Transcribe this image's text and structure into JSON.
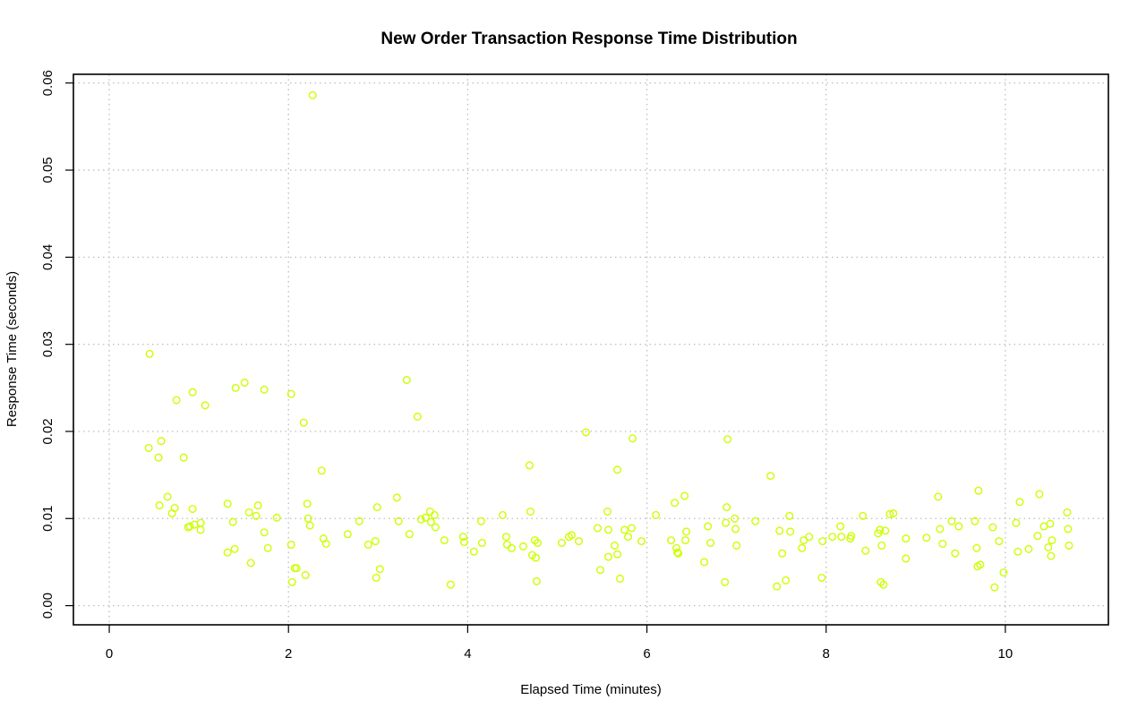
{
  "chart_data": {
    "type": "scatter",
    "title": "New Order Transaction Response Time Distribution",
    "xlabel": "Elapsed Time (minutes)",
    "ylabel": "Response Time (seconds)",
    "xlim": [
      -0.4,
      11.15
    ],
    "ylim": [
      -0.0022,
      0.061
    ],
    "xticks": [
      0,
      2,
      4,
      6,
      8,
      10
    ],
    "yticks": [
      0.0,
      0.01,
      0.02,
      0.03,
      0.04,
      0.05,
      0.06
    ],
    "xtick_labels": [
      "0",
      "2",
      "4",
      "6",
      "8",
      "10"
    ],
    "ytick_labels": [
      "0.00",
      "0.01",
      "0.02",
      "0.03",
      "0.04",
      "0.05",
      "0.06"
    ],
    "grid": true,
    "legend": "none",
    "point_color": "#ccff00",
    "points": [
      [
        0.45,
        0.0289
      ],
      [
        0.44,
        0.0181
      ],
      [
        0.55,
        0.017
      ],
      [
        0.58,
        0.0189
      ],
      [
        0.56,
        0.0115
      ],
      [
        0.65,
        0.0125
      ],
      [
        0.7,
        0.0106
      ],
      [
        0.73,
        0.0112
      ],
      [
        0.75,
        0.0236
      ],
      [
        0.83,
        0.017
      ],
      [
        0.88,
        0.009
      ],
      [
        0.9,
        0.0091
      ],
      [
        0.93,
        0.0245
      ],
      [
        0.93,
        0.0111
      ],
      [
        0.95,
        0.0093
      ],
      [
        1.02,
        0.0095
      ],
      [
        1.02,
        0.0087
      ],
      [
        1.07,
        0.023
      ],
      [
        1.32,
        0.0117
      ],
      [
        1.32,
        0.0061
      ],
      [
        1.38,
        0.0096
      ],
      [
        1.4,
        0.0065
      ],
      [
        1.41,
        0.025
      ],
      [
        1.51,
        0.0256
      ],
      [
        1.56,
        0.0107
      ],
      [
        1.58,
        0.0049
      ],
      [
        1.64,
        0.0103
      ],
      [
        1.66,
        0.0115
      ],
      [
        1.73,
        0.0248
      ],
      [
        1.73,
        0.0084
      ],
      [
        1.77,
        0.0066
      ],
      [
        1.87,
        0.0101
      ],
      [
        2.03,
        0.0243
      ],
      [
        2.03,
        0.007
      ],
      [
        2.04,
        0.0027
      ],
      [
        2.07,
        0.0043
      ],
      [
        2.09,
        0.0043
      ],
      [
        2.17,
        0.021
      ],
      [
        2.19,
        0.0035
      ],
      [
        2.21,
        0.0117
      ],
      [
        2.22,
        0.01
      ],
      [
        2.24,
        0.0092
      ],
      [
        2.27,
        0.0586
      ],
      [
        2.37,
        0.0155
      ],
      [
        2.39,
        0.0077
      ],
      [
        2.42,
        0.0071
      ],
      [
        2.66,
        0.0082
      ],
      [
        2.79,
        0.0097
      ],
      [
        2.89,
        0.007
      ],
      [
        2.97,
        0.0074
      ],
      [
        2.98,
        0.0032
      ],
      [
        2.99,
        0.0113
      ],
      [
        3.02,
        0.0042
      ],
      [
        3.21,
        0.0124
      ],
      [
        3.23,
        0.0097
      ],
      [
        3.32,
        0.0259
      ],
      [
        3.35,
        0.0082
      ],
      [
        3.44,
        0.0217
      ],
      [
        3.48,
        0.0099
      ],
      [
        3.53,
        0.0101
      ],
      [
        3.58,
        0.0108
      ],
      [
        3.59,
        0.0096
      ],
      [
        3.63,
        0.0104
      ],
      [
        3.64,
        0.009
      ],
      [
        3.74,
        0.0075
      ],
      [
        3.81,
        0.0024
      ],
      [
        3.95,
        0.0079
      ],
      [
        3.96,
        0.0073
      ],
      [
        4.07,
        0.0062
      ],
      [
        4.15,
        0.0097
      ],
      [
        4.16,
        0.0072
      ],
      [
        4.39,
        0.0104
      ],
      [
        4.43,
        0.0079
      ],
      [
        4.44,
        0.007
      ],
      [
        4.49,
        0.0066
      ],
      [
        4.62,
        0.0068
      ],
      [
        4.69,
        0.0161
      ],
      [
        4.7,
        0.0108
      ],
      [
        4.72,
        0.0058
      ],
      [
        4.75,
        0.0075
      ],
      [
        4.76,
        0.0055
      ],
      [
        4.77,
        0.0028
      ],
      [
        4.78,
        0.0072
      ],
      [
        5.05,
        0.0072
      ],
      [
        5.13,
        0.0079
      ],
      [
        5.16,
        0.0081
      ],
      [
        5.24,
        0.0074
      ],
      [
        5.32,
        0.0199
      ],
      [
        5.45,
        0.0089
      ],
      [
        5.48,
        0.0041
      ],
      [
        5.56,
        0.0108
      ],
      [
        5.57,
        0.0087
      ],
      [
        5.57,
        0.0056
      ],
      [
        5.64,
        0.0069
      ],
      [
        5.67,
        0.0156
      ],
      [
        5.67,
        0.0059
      ],
      [
        5.7,
        0.0031
      ],
      [
        5.75,
        0.0087
      ],
      [
        5.79,
        0.0079
      ],
      [
        5.83,
        0.0089
      ],
      [
        5.84,
        0.0192
      ],
      [
        5.94,
        0.0074
      ],
      [
        6.1,
        0.0104
      ],
      [
        6.27,
        0.0075
      ],
      [
        6.31,
        0.0118
      ],
      [
        6.33,
        0.0066
      ],
      [
        6.34,
        0.0061
      ],
      [
        6.35,
        0.006
      ],
      [
        6.42,
        0.0126
      ],
      [
        6.43,
        0.0075
      ],
      [
        6.44,
        0.0085
      ],
      [
        6.64,
        0.005
      ],
      [
        6.68,
        0.0091
      ],
      [
        6.71,
        0.0072
      ],
      [
        6.87,
        0.0027
      ],
      [
        6.88,
        0.0095
      ],
      [
        6.89,
        0.0113
      ],
      [
        6.9,
        0.0191
      ],
      [
        6.98,
        0.01
      ],
      [
        6.99,
        0.0088
      ],
      [
        7.0,
        0.0069
      ],
      [
        7.21,
        0.0097
      ],
      [
        7.38,
        0.0149
      ],
      [
        7.45,
        0.0022
      ],
      [
        7.48,
        0.0086
      ],
      [
        7.51,
        0.006
      ],
      [
        7.55,
        0.0029
      ],
      [
        7.59,
        0.0103
      ],
      [
        7.6,
        0.0085
      ],
      [
        7.73,
        0.0066
      ],
      [
        7.75,
        0.0075
      ],
      [
        7.81,
        0.0079
      ],
      [
        7.95,
        0.0032
      ],
      [
        7.96,
        0.0074
      ],
      [
        8.07,
        0.0079
      ],
      [
        8.16,
        0.0091
      ],
      [
        8.17,
        0.0079
      ],
      [
        8.27,
        0.0077
      ],
      [
        8.28,
        0.008
      ],
      [
        8.41,
        0.0103
      ],
      [
        8.44,
        0.0063
      ],
      [
        8.58,
        0.0083
      ],
      [
        8.6,
        0.0087
      ],
      [
        8.61,
        0.0027
      ],
      [
        8.62,
        0.0069
      ],
      [
        8.64,
        0.0024
      ],
      [
        8.66,
        0.0086
      ],
      [
        8.71,
        0.0105
      ],
      [
        8.75,
        0.0106
      ],
      [
        8.89,
        0.0077
      ],
      [
        8.89,
        0.0054
      ],
      [
        9.12,
        0.0078
      ],
      [
        9.25,
        0.0125
      ],
      [
        9.27,
        0.0088
      ],
      [
        9.3,
        0.0071
      ],
      [
        9.4,
        0.0097
      ],
      [
        9.44,
        0.006
      ],
      [
        9.48,
        0.0091
      ],
      [
        9.66,
        0.0097
      ],
      [
        9.68,
        0.0066
      ],
      [
        9.69,
        0.0045
      ],
      [
        9.7,
        0.0132
      ],
      [
        9.72,
        0.0047
      ],
      [
        9.86,
        0.009
      ],
      [
        9.88,
        0.0021
      ],
      [
        9.93,
        0.0074
      ],
      [
        9.98,
        0.0038
      ],
      [
        10.12,
        0.0095
      ],
      [
        10.14,
        0.0062
      ],
      [
        10.16,
        0.0119
      ],
      [
        10.26,
        0.0065
      ],
      [
        10.36,
        0.008
      ],
      [
        10.38,
        0.0128
      ],
      [
        10.43,
        0.0091
      ],
      [
        10.48,
        0.0067
      ],
      [
        10.5,
        0.0094
      ],
      [
        10.51,
        0.0057
      ],
      [
        10.52,
        0.0075
      ],
      [
        10.69,
        0.0107
      ],
      [
        10.7,
        0.0088
      ],
      [
        10.71,
        0.0069
      ]
    ]
  }
}
